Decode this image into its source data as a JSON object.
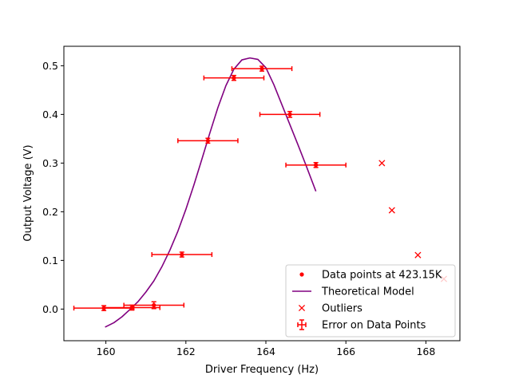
{
  "chart_data": {
    "type": "scatter",
    "title": "",
    "xlabel": "Driver Frequency (Hz)",
    "ylabel": "Output Voltage (V)",
    "xlim": [
      158.95,
      168.85
    ],
    "ylim": [
      -0.065,
      0.54
    ],
    "xticks": [
      160,
      162,
      164,
      166,
      168
    ],
    "yticks": [
      0.0,
      0.1,
      0.2,
      0.3,
      0.4,
      0.5
    ],
    "grid": false,
    "legend_position": "lower-right",
    "colors": {
      "data": "#ff0000",
      "model": "#800080",
      "frame": "#000000"
    },
    "series": [
      {
        "name": "Data points at 423.15K",
        "kind": "points",
        "x": [
          159.95,
          160.65,
          161.2,
          161.9,
          162.55,
          163.2,
          163.9,
          164.6,
          165.25
        ],
        "y": [
          0.002,
          0.003,
          0.008,
          0.112,
          0.346,
          0.475,
          0.494,
          0.4,
          0.296
        ],
        "xerr": [
          0.75,
          0.7,
          0.75,
          0.75,
          0.75,
          0.75,
          0.75,
          0.75,
          0.75
        ],
        "yerr": [
          0.005,
          0.005,
          0.007,
          0.005,
          0.005,
          0.005,
          0.005,
          0.006,
          0.005
        ]
      },
      {
        "name": "Theoretical Model",
        "kind": "line",
        "x": [
          159.98,
          160.2,
          160.4,
          160.6,
          160.8,
          161.0,
          161.2,
          161.4,
          161.6,
          161.8,
          162.0,
          162.2,
          162.4,
          162.6,
          162.8,
          163.0,
          163.2,
          163.4,
          163.6,
          163.8,
          164.0,
          164.2,
          164.4,
          164.6,
          164.8,
          165.0,
          165.25
        ],
        "y": [
          -0.037,
          -0.028,
          -0.016,
          -0.001,
          0.015,
          0.035,
          0.058,
          0.087,
          0.121,
          0.16,
          0.205,
          0.255,
          0.308,
          0.362,
          0.414,
          0.459,
          0.493,
          0.512,
          0.516,
          0.513,
          0.496,
          0.461,
          0.42,
          0.379,
          0.338,
          0.296,
          0.242
        ]
      },
      {
        "name": "Outliers",
        "kind": "markers-x",
        "x": [
          166.9,
          167.15,
          167.8,
          168.45
        ],
        "y": [
          0.3,
          0.203,
          0.111,
          0.062
        ]
      }
    ],
    "legend": [
      {
        "label": "Data points at 423.15K",
        "symbol": "dot"
      },
      {
        "label": "Theoretical Model",
        "symbol": "line"
      },
      {
        "label": "Outliers",
        "symbol": "x"
      },
      {
        "label": "Error on Data Points",
        "symbol": "errorbar"
      }
    ]
  }
}
